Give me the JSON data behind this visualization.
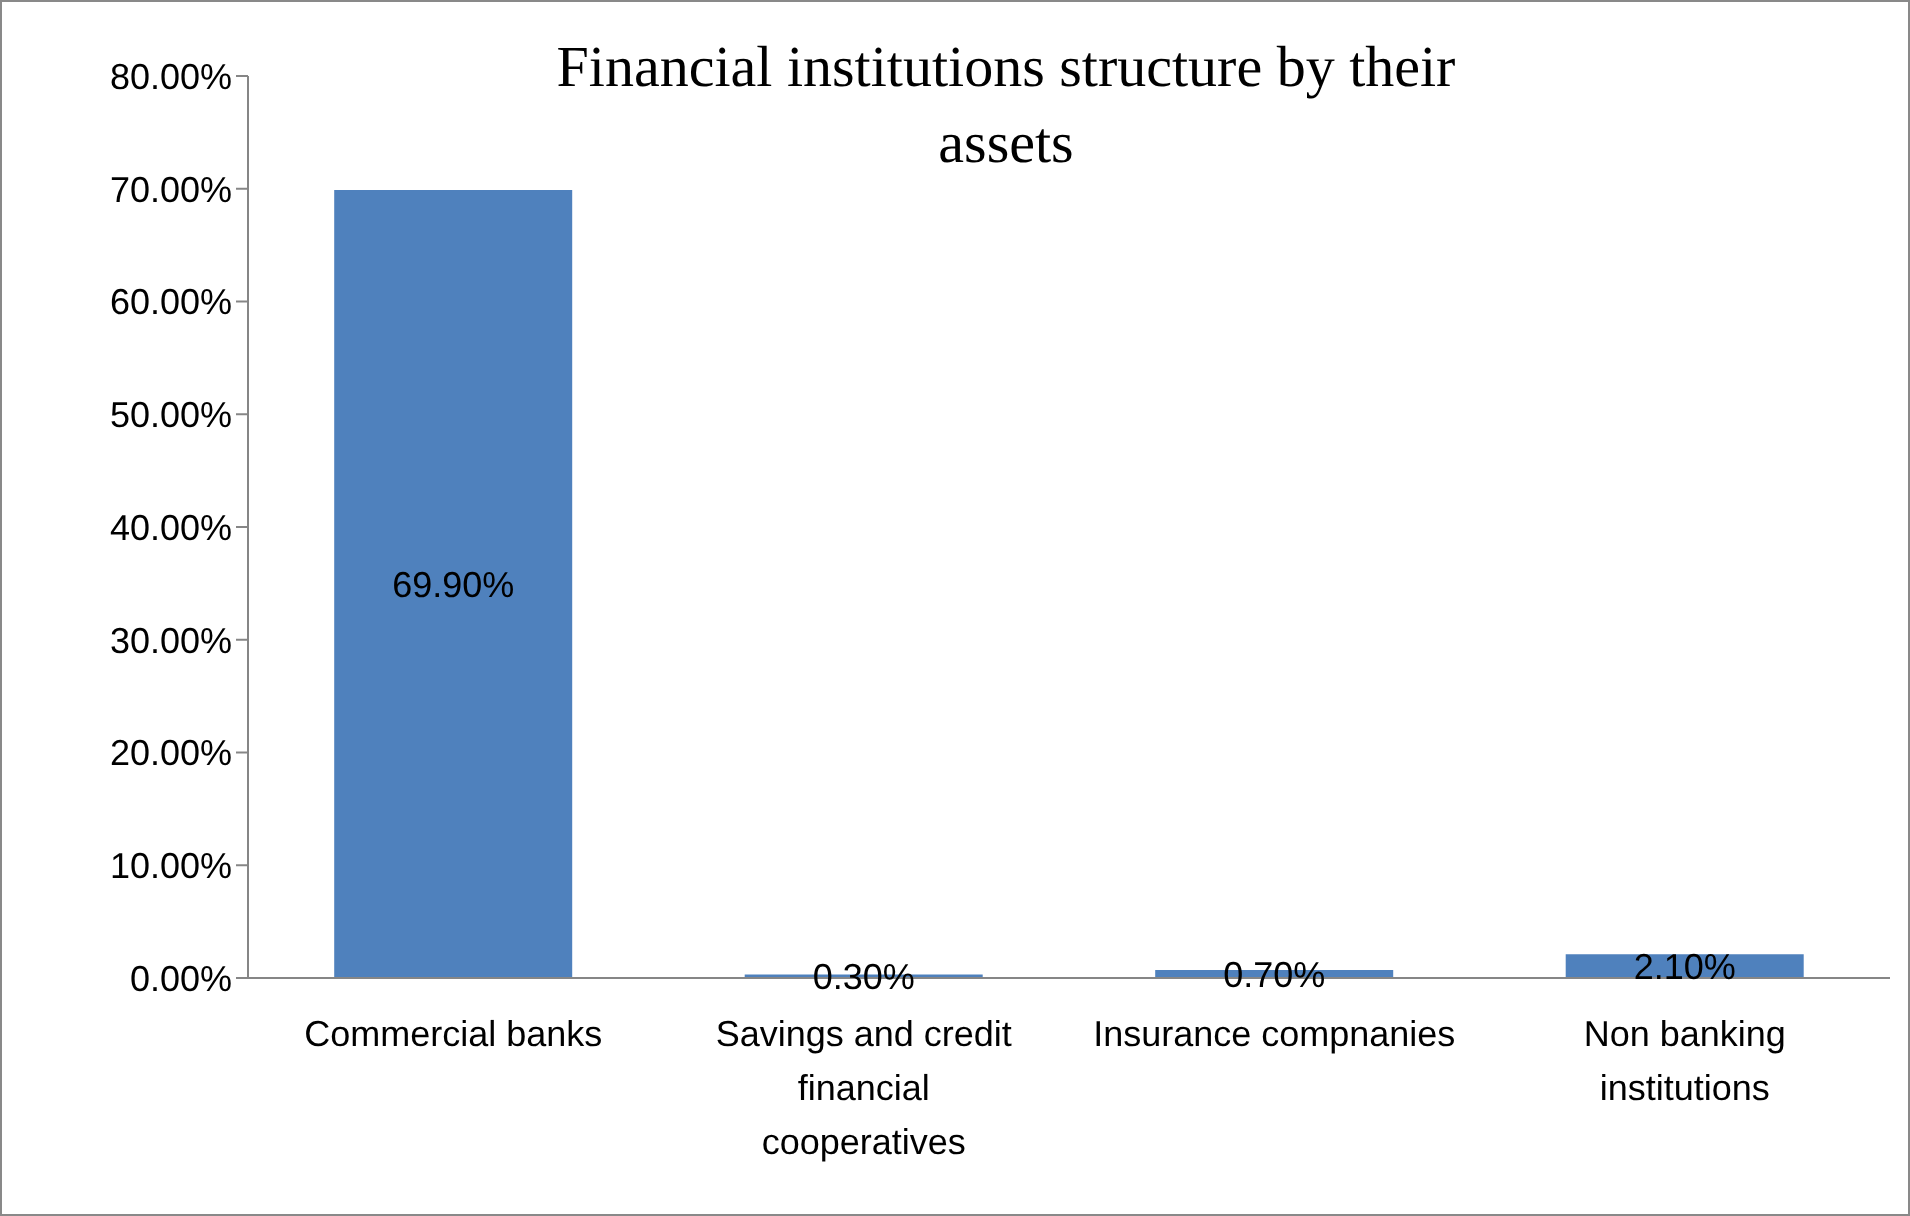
{
  "chart_data": {
    "type": "bar",
    "title": "Financial institutions structure by their assets",
    "categories": [
      "Commercial banks",
      "Savings and credit financial cooperatives",
      "Insurance compnanies",
      "Non banking institutions"
    ],
    "values": [
      69.9,
      0.3,
      0.7,
      2.1
    ],
    "value_labels": [
      "69.90%",
      "0.30%",
      "0.70%",
      "2.10%"
    ],
    "color": "#4f81bd",
    "ylim": [
      0,
      80
    ],
    "yticks": [
      {
        "value": 0,
        "label": "0.00%"
      },
      {
        "value": 10,
        "label": "10.00%"
      },
      {
        "value": 20,
        "label": "20.00%"
      },
      {
        "value": 30,
        "label": "30.00%"
      },
      {
        "value": 40,
        "label": "40.00%"
      },
      {
        "value": 50,
        "label": "50.00%"
      },
      {
        "value": 60,
        "label": "60.00%"
      },
      {
        "value": 70,
        "label": "70.00%"
      },
      {
        "value": 80,
        "label": "80.00%"
      }
    ]
  }
}
